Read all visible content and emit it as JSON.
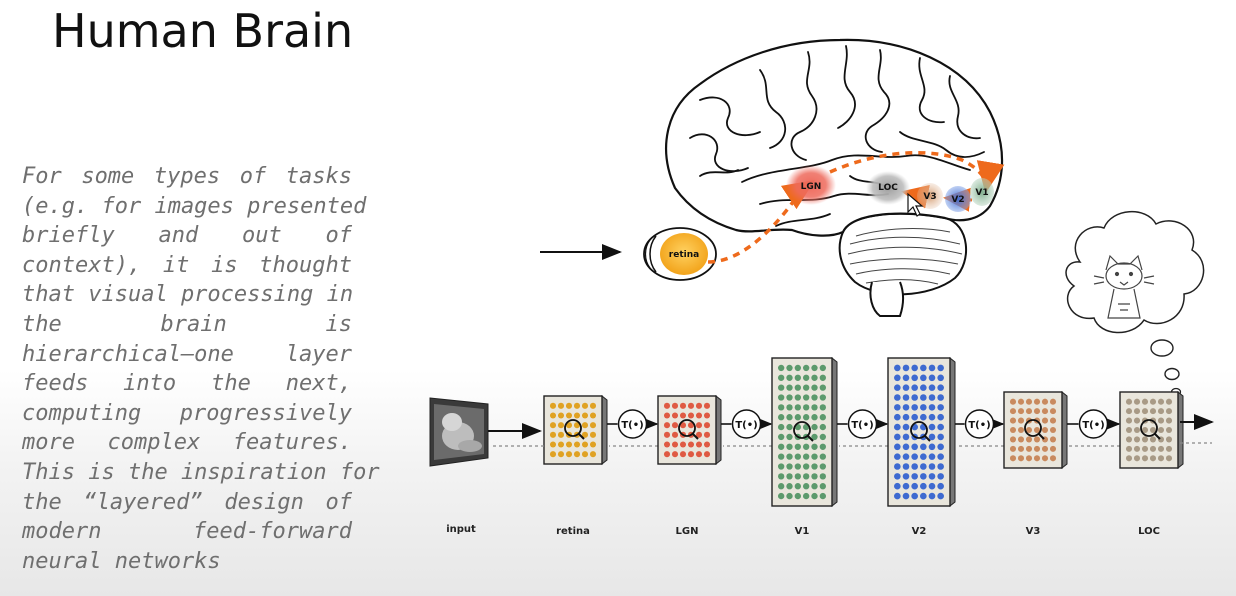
{
  "slide": {
    "title": "Human Brain",
    "body_lines": [
      "For some types of tasks",
      "(e.g. for images presented",
      "briefly and out of",
      "context), it is thought",
      "that visual processing in",
      "the brain is",
      "hierarchical—one layer",
      "feeds into the next,",
      "computing progressively",
      "more complex features.",
      "This is the inspiration for",
      "the “layered” design of",
      "modern feed-forward",
      "neural networks"
    ]
  },
  "brain_diagram": {
    "regions": [
      "retina",
      "LGN",
      "LOC",
      "V3",
      "V2",
      "V1"
    ],
    "region_colors": {
      "retina": "#f5b52a",
      "LGN": "#ee6a5c",
      "LOC": "#b8b8b8",
      "V3": "#d9a07a",
      "V2": "#4f7fd6",
      "V1": "#8fb89a",
      "pathway": "#ee6a1c"
    }
  },
  "pipeline": {
    "input_label": "input",
    "transform_label": "T(•)",
    "stages": [
      {
        "label": "retina",
        "color": "#e0a222"
      },
      {
        "label": "LGN",
        "color": "#df5a42"
      },
      {
        "label": "V1",
        "color": "#5c9a6c"
      },
      {
        "label": "V2",
        "color": "#3e6ad0"
      },
      {
        "label": "V3",
        "color": "#c98a5e"
      },
      {
        "label": "LOC",
        "color": "#a89a86"
      }
    ]
  }
}
